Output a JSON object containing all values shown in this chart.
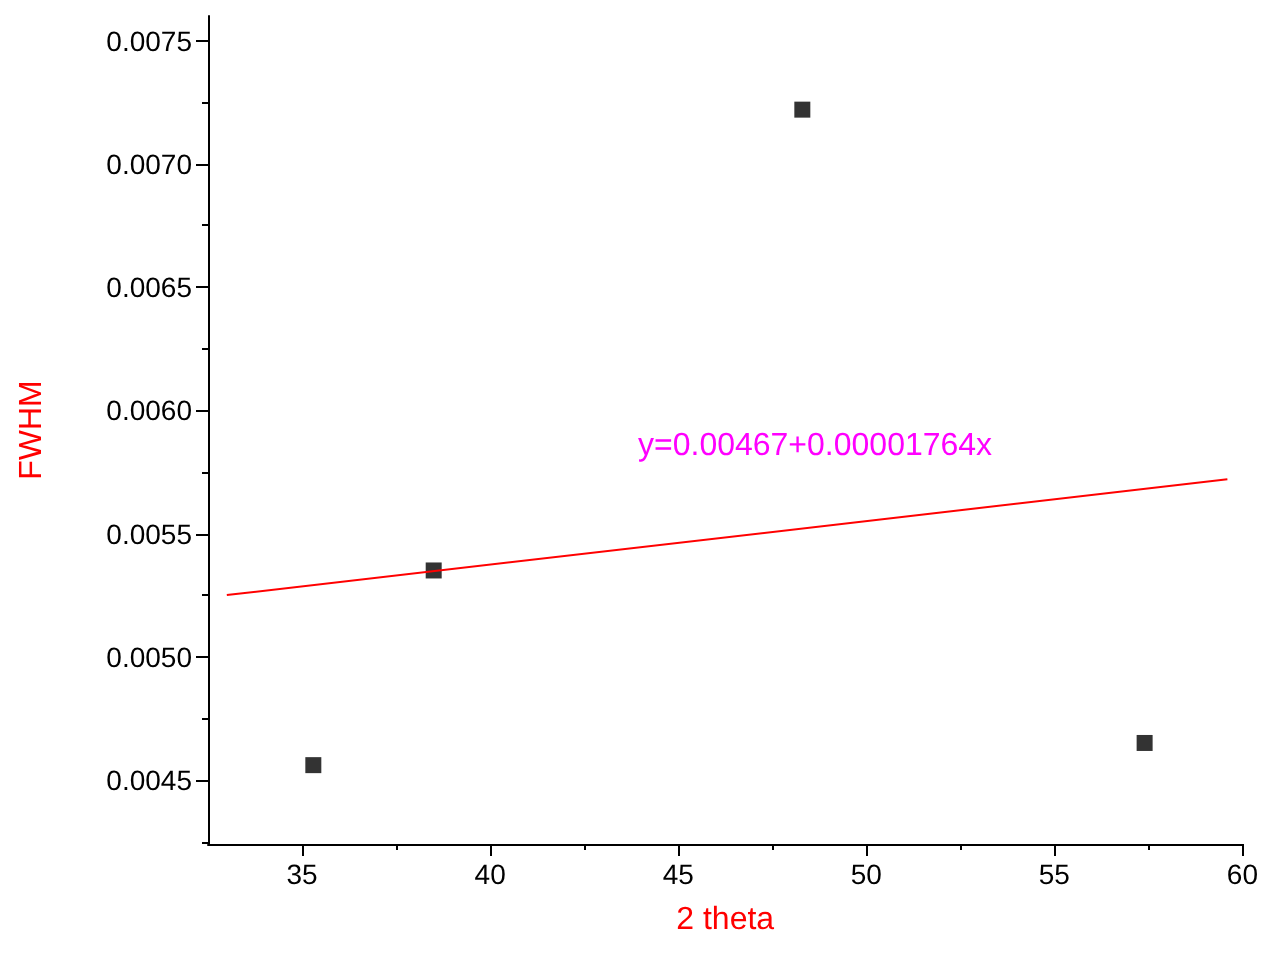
{
  "chart_data": {
    "type": "scatter",
    "xlabel": "2 theta",
    "ylabel": "FWHM",
    "xlim": [
      32.5,
      60
    ],
    "xticks": [
      35,
      40,
      45,
      50,
      55,
      60
    ],
    "ylim": [
      0.00424,
      0.0076
    ],
    "yticks": [
      {
        "value": 0.0045,
        "label": "0.0045"
      },
      {
        "value": 0.005,
        "label": "0.0050"
      },
      {
        "value": 0.0055,
        "label": "0.0055"
      },
      {
        "value": 0.006,
        "label": "0.0060"
      },
      {
        "value": 0.0065,
        "label": "0.0065"
      },
      {
        "value": 0.007,
        "label": "0.0070"
      },
      {
        "value": 0.0075,
        "label": "0.0075"
      }
    ],
    "grid": false,
    "marker": "square",
    "series": [
      {
        "color": "#000000",
        "x": [
          35.3,
          38.5,
          48.3,
          57.4
        ],
        "values": [
          0.00456,
          0.00535,
          0.00722,
          0.00465
        ]
      },
      {
        "type": "line",
        "color": "#ff0000",
        "marker": "none",
        "line_style": "solid",
        "x": [
          33,
          59.6
        ],
        "values": [
          0.00525,
          0.00572
        ]
      }
    ],
    "annotations": [
      "y=0.00467+0.00001764x"
    ]
  }
}
